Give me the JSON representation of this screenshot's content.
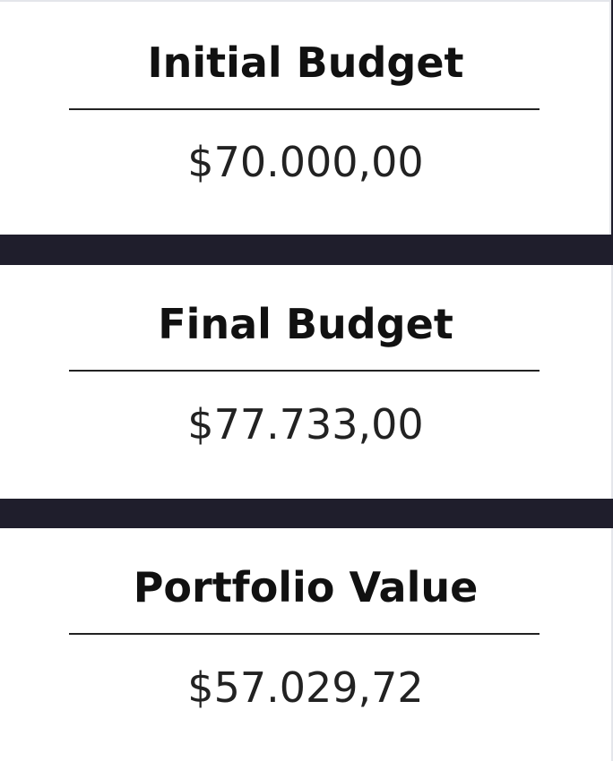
{
  "cards": [
    {
      "title": "Initial Budget",
      "value": "$70.000,00"
    },
    {
      "title": "Final Budget",
      "value": "$77.733,00"
    },
    {
      "title": "Portfolio Value",
      "value": "$57.029,72"
    }
  ],
  "colors": {
    "separator": "#1f1e2c",
    "card_background": "#ffffff",
    "text": "#111111"
  }
}
